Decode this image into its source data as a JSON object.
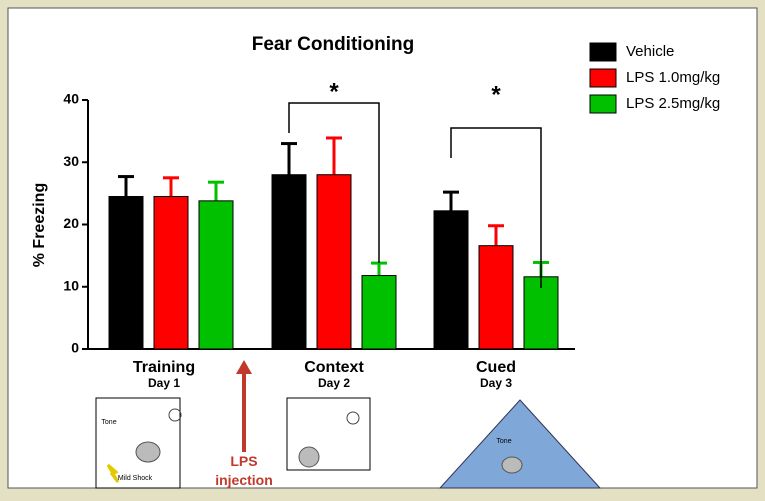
{
  "chart_data": {
    "type": "bar",
    "title": "Fear Conditioning",
    "ylabel": "% Freezing",
    "categories": [
      "Training",
      "Context",
      "Cued"
    ],
    "day_labels": [
      "Day 1",
      "Day 2",
      "Day 3"
    ],
    "series": [
      {
        "name": "Vehicle",
        "color": "#000000",
        "values": [
          24.5,
          28,
          22.2
        ],
        "errors": [
          3.2,
          5,
          3
        ]
      },
      {
        "name": "LPS 1.0mg/kg",
        "color": "#ff0000",
        "values": [
          24.5,
          28,
          16.6
        ],
        "errors": [
          3,
          5.9,
          3.2
        ]
      },
      {
        "name": "LPS 2.5mg/kg",
        "color": "#00c000",
        "values": [
          23.8,
          11.8,
          11.6
        ],
        "errors": [
          3,
          2,
          2.3
        ]
      }
    ],
    "ylim": [
      0,
      40
    ],
    "yticks": [
      0,
      10,
      20,
      30,
      40
    ],
    "significance": [
      "*",
      "*"
    ],
    "arrow_label": "LPS injection",
    "icon_labels": [
      "Tone",
      "Mild Shock",
      "Tone"
    ]
  }
}
